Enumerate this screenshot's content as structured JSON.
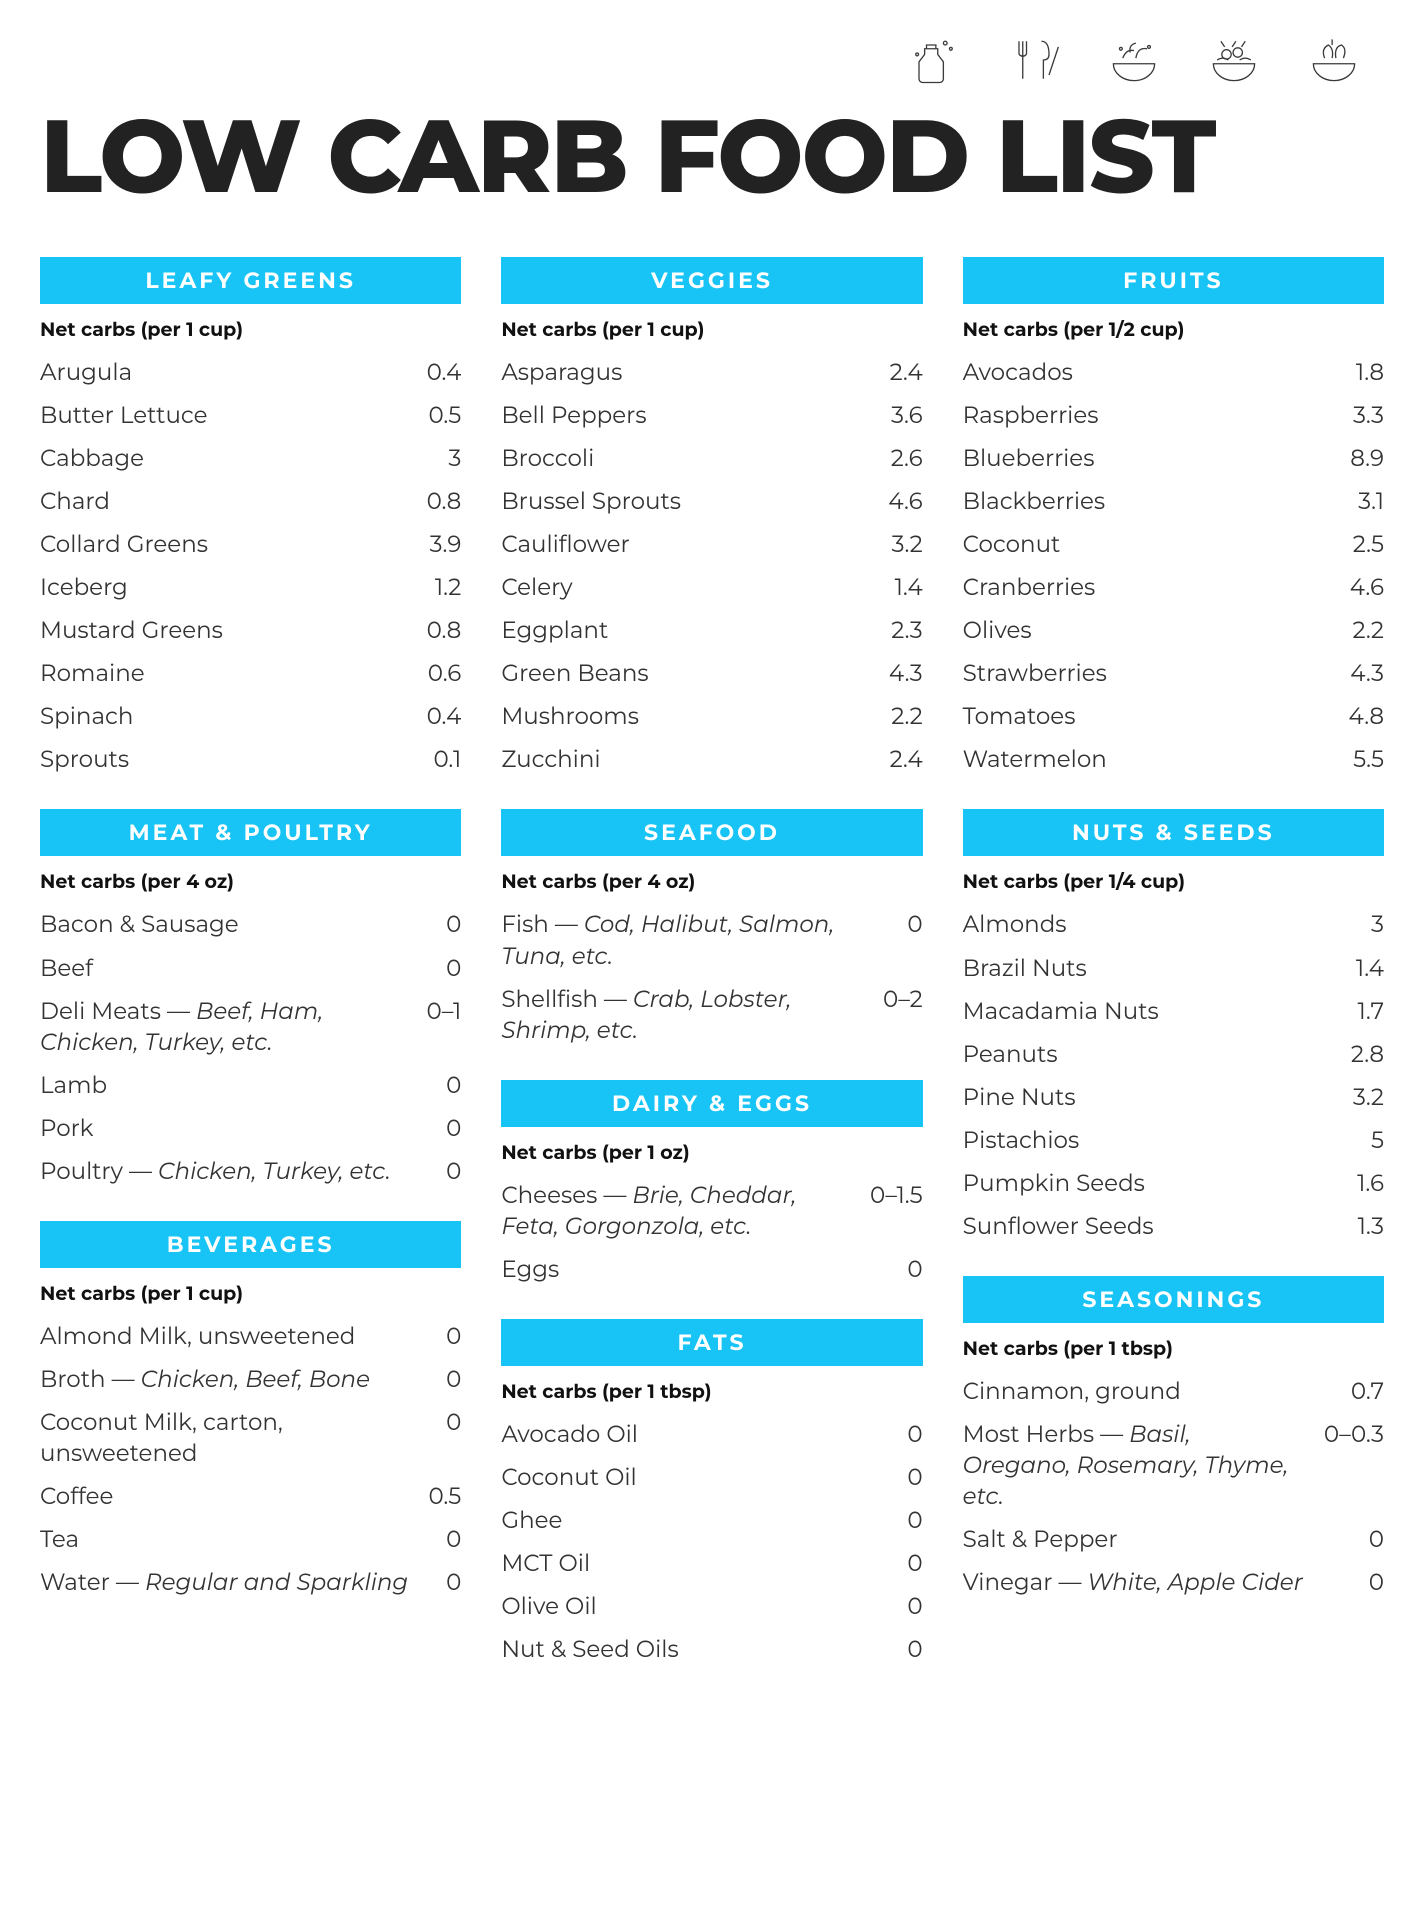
{
  "page": {
    "title": "LOW CARB FOOD LIST",
    "accent_color": "#17c4f5",
    "text_color": "#222222",
    "background": "#ffffff",
    "title_fontsize": 102
  },
  "icons": [
    "jug-icon",
    "utensils-icon",
    "veggie-bowl-icon",
    "salad-bowl-icon",
    "grain-bowl-icon"
  ],
  "columns": [
    [
      {
        "title": "LEAFY GREENS",
        "subtitle": "Net carbs (per 1 cup)",
        "rows": [
          {
            "name": "Arugula",
            "val": "0.4"
          },
          {
            "name": "Butter Lettuce",
            "val": "0.5"
          },
          {
            "name": "Cabbage",
            "val": "3"
          },
          {
            "name": "Chard",
            "val": "0.8"
          },
          {
            "name": "Collard Greens",
            "val": "3.9"
          },
          {
            "name": "Iceberg",
            "val": "1.2"
          },
          {
            "name": "Mustard Greens",
            "val": "0.8"
          },
          {
            "name": "Romaine",
            "val": "0.6"
          },
          {
            "name": "Spinach",
            "val": "0.4"
          },
          {
            "name": "Sprouts",
            "val": "0.1"
          }
        ]
      },
      {
        "title": "MEAT & POULTRY",
        "subtitle": "Net carbs (per 4 oz)",
        "rows": [
          {
            "name": "Bacon & Sausage",
            "val": "0"
          },
          {
            "name": "Beef",
            "val": "0"
          },
          {
            "name": "Deli Meats — ",
            "note": "Beef, Ham, Chicken, Turkey, etc.",
            "val": "0–1"
          },
          {
            "name": "Lamb",
            "val": "0"
          },
          {
            "name": "Pork",
            "val": "0"
          },
          {
            "name": "Poultry — ",
            "note": "Chicken, Turkey, etc.",
            "val": "0"
          }
        ]
      },
      {
        "title": "BEVERAGES",
        "subtitle": "Net carbs (per 1 cup)",
        "rows": [
          {
            "name": "Almond Milk, unsweetened",
            "val": "0"
          },
          {
            "name": "Broth — ",
            "note": "Chicken, Beef, Bone",
            "val": "0"
          },
          {
            "name": "Coconut Milk, carton, unsweetened",
            "val": "0"
          },
          {
            "name": "Coffee",
            "val": "0.5"
          },
          {
            "name": "Tea",
            "val": "0"
          },
          {
            "name": "Water — ",
            "note": "Regular and Sparkling",
            "val": "0"
          }
        ]
      }
    ],
    [
      {
        "title": "VEGGIES",
        "subtitle": "Net carbs (per 1 cup)",
        "rows": [
          {
            "name": "Asparagus",
            "val": "2.4"
          },
          {
            "name": "Bell Peppers",
            "val": "3.6"
          },
          {
            "name": "Broccoli",
            "val": "2.6"
          },
          {
            "name": "Brussel Sprouts",
            "val": "4.6"
          },
          {
            "name": "Cauliflower",
            "val": "3.2"
          },
          {
            "name": "Celery",
            "val": "1.4"
          },
          {
            "name": "Eggplant",
            "val": "2.3"
          },
          {
            "name": "Green Beans",
            "val": "4.3"
          },
          {
            "name": "Mushrooms",
            "val": "2.2"
          },
          {
            "name": "Zucchini",
            "val": "2.4"
          }
        ]
      },
      {
        "title": "SEAFOOD",
        "subtitle": "Net carbs (per 4 oz)",
        "rows": [
          {
            "name": "Fish — ",
            "note": "Cod, Halibut, Salmon, Tuna, etc.",
            "val": "0"
          },
          {
            "name": "Shellfish — ",
            "note": "Crab, Lobster, Shrimp, etc.",
            "val": "0–2"
          }
        ]
      },
      {
        "title": "DAIRY & EGGS",
        "subtitle": "Net carbs (per 1 oz)",
        "rows": [
          {
            "name": "Cheeses — ",
            "note": "Brie, Cheddar, Feta, Gorgonzola, etc.",
            "val": "0–1.5"
          },
          {
            "name": "Eggs",
            "val": "0"
          }
        ]
      },
      {
        "title": "FATS",
        "subtitle": "Net carbs (per 1 tbsp)",
        "rows": [
          {
            "name": "Avocado Oil",
            "val": "0"
          },
          {
            "name": "Coconut Oil",
            "val": "0"
          },
          {
            "name": "Ghee",
            "val": "0"
          },
          {
            "name": "MCT Oil",
            "val": "0"
          },
          {
            "name": "Olive Oil",
            "val": "0"
          },
          {
            "name": "Nut & Seed Oils",
            "val": "0"
          }
        ]
      }
    ],
    [
      {
        "title": "FRUITS",
        "subtitle": "Net carbs (per 1/2 cup)",
        "rows": [
          {
            "name": "Avocados",
            "val": "1.8"
          },
          {
            "name": "Raspberries",
            "val": "3.3"
          },
          {
            "name": "Blueberries",
            "val": "8.9"
          },
          {
            "name": "Blackberries",
            "val": "3.1"
          },
          {
            "name": "Coconut",
            "val": "2.5"
          },
          {
            "name": "Cranberries",
            "val": "4.6"
          },
          {
            "name": "Olives",
            "val": "2.2"
          },
          {
            "name": "Strawberries",
            "val": "4.3"
          },
          {
            "name": "Tomatoes",
            "val": "4.8"
          },
          {
            "name": "Watermelon",
            "val": "5.5"
          }
        ]
      },
      {
        "title": "NUTS & SEEDS",
        "subtitle": "Net carbs (per 1/4 cup)",
        "rows": [
          {
            "name": "Almonds",
            "val": "3"
          },
          {
            "name": "Brazil Nuts",
            "val": "1.4"
          },
          {
            "name": "Macadamia Nuts",
            "val": "1.7"
          },
          {
            "name": "Peanuts",
            "val": "2.8"
          },
          {
            "name": "Pine Nuts",
            "val": "3.2"
          },
          {
            "name": "Pistachios",
            "val": "5"
          },
          {
            "name": "Pumpkin Seeds",
            "val": "1.6"
          },
          {
            "name": "Sunflower Seeds",
            "val": "1.3"
          }
        ]
      },
      {
        "title": "SEASONINGS",
        "subtitle": "Net carbs (per 1 tbsp)",
        "rows": [
          {
            "name": "Cinnamon, ground",
            "val": "0.7"
          },
          {
            "name": "Most Herbs — ",
            "note": "Basil, Oregano, Rosemary, Thyme, etc.",
            "val": "0–0.3"
          },
          {
            "name": "Salt & Pepper",
            "val": "0"
          },
          {
            "name": "Vinegar — ",
            "note": "White, Apple Cider",
            "val": "0"
          }
        ]
      }
    ]
  ]
}
